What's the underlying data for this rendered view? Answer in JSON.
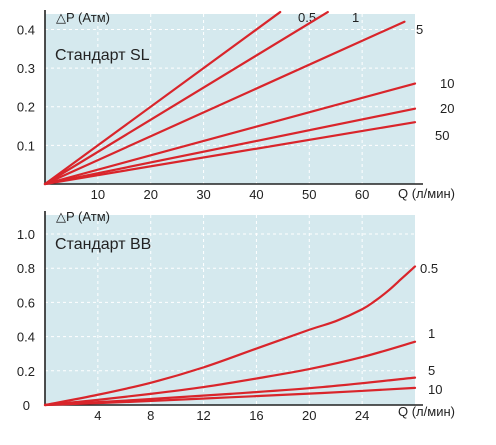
{
  "chart_data": [
    {
      "type": "line",
      "title": "Стандарт SL",
      "ylabel": "△P (Атм)",
      "xlabel": "Q (л/мин)",
      "xlim": [
        0,
        70
      ],
      "ylim": [
        0,
        0.44
      ],
      "x_ticks": [
        10,
        20,
        30,
        40,
        50,
        60
      ],
      "y_ticks": [
        0.1,
        0.2,
        0.3,
        0.4
      ],
      "x_tick_labels": [
        "10",
        "20",
        "30",
        "40",
        "50",
        "60"
      ],
      "y_tick_labels": [
        "0.1",
        "0.2",
        "0.3",
        "0.4"
      ],
      "origin_label": "",
      "line_color": "#d9252b",
      "grid": true,
      "series": [
        {
          "name": "0.5",
          "x": [
            0,
            44.5
          ],
          "y": [
            0,
            0.445
          ]
        },
        {
          "name": "1",
          "x": [
            0,
            53.5
          ],
          "y": [
            0,
            0.445
          ]
        },
        {
          "name": "5",
          "x": [
            0,
            68
          ],
          "y": [
            0,
            0.42
          ]
        },
        {
          "name": "10",
          "x": [
            0,
            70
          ],
          "y": [
            0,
            0.26
          ]
        },
        {
          "name": "20",
          "x": [
            0,
            70
          ],
          "y": [
            0,
            0.195
          ]
        },
        {
          "name": "50",
          "x": [
            0,
            70
          ],
          "y": [
            0,
            0.16
          ]
        }
      ]
    },
    {
      "type": "line",
      "title": "Стандарт BB",
      "ylabel": "△P (Атм)",
      "xlabel": "Q (л/мин)",
      "xlim": [
        0,
        28
      ],
      "ylim": [
        0,
        1.0
      ],
      "x_ticks": [
        4,
        8,
        12,
        16,
        20,
        24
      ],
      "y_ticks": [
        0.2,
        0.4,
        0.6,
        0.8,
        1.0
      ],
      "x_tick_labels": [
        "4",
        "8",
        "12",
        "16",
        "20",
        "24"
      ],
      "y_tick_labels": [
        "0.2",
        "0.4",
        "0.6",
        "0.8",
        "1.0"
      ],
      "origin_label": "0",
      "line_color": "#d9252b",
      "grid": true,
      "series": [
        {
          "name": "0.5",
          "x": [
            0,
            4,
            8,
            12,
            16,
            20,
            22,
            24,
            25,
            26,
            27,
            28
          ],
          "y": [
            0,
            0.06,
            0.13,
            0.22,
            0.33,
            0.44,
            0.49,
            0.56,
            0.61,
            0.67,
            0.74,
            0.81
          ]
        },
        {
          "name": "1",
          "x": [
            0,
            4,
            8,
            12,
            16,
            20,
            24,
            28
          ],
          "y": [
            0,
            0.03,
            0.065,
            0.105,
            0.155,
            0.21,
            0.28,
            0.37
          ]
        },
        {
          "name": "5",
          "x": [
            0,
            7,
            14,
            21,
            28
          ],
          "y": [
            0,
            0.03,
            0.065,
            0.105,
            0.16
          ]
        },
        {
          "name": "10",
          "x": [
            0,
            7,
            14,
            21,
            28
          ],
          "y": [
            0,
            0.02,
            0.045,
            0.07,
            0.1
          ]
        }
      ]
    }
  ]
}
